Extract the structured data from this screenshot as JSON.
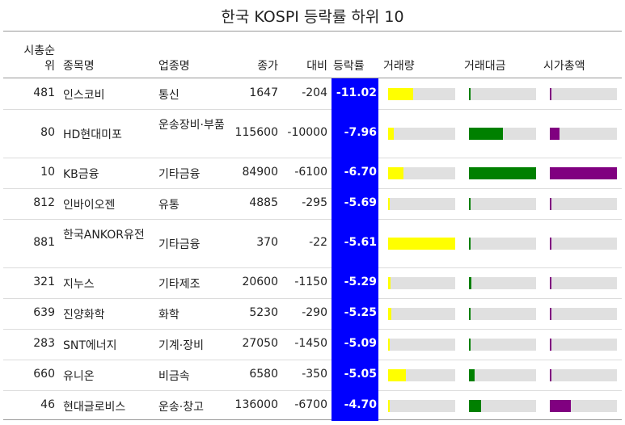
{
  "colors": {
    "pct_bg": "#0000ff",
    "volume": "#ffff00",
    "value": "#008000",
    "mcap": "#800080",
    "track": "#e0e0e0"
  },
  "chart_data": {
    "type": "table",
    "title": "한국 KOSPI 등락률 하위 10",
    "columns": [
      "시총순위",
      "종목명",
      "업종명",
      "종가",
      "대비",
      "등락률",
      "거래량",
      "거래대금",
      "시가총액"
    ],
    "header_rank_lines": [
      "시총순",
      "위"
    ],
    "rows": [
      {
        "rank": "481",
        "name": "인스코비",
        "sector": "통신",
        "close": "1647",
        "change": "-204",
        "pct": "-11.02",
        "volume": 0.37,
        "value": 0.03,
        "mcap": 0.01
      },
      {
        "rank": "80",
        "name": "HD현대미포",
        "sector": "운송장비·부품",
        "close": "115600",
        "change": "-10000",
        "pct": "-7.96",
        "volume": 0.09,
        "value": 0.5,
        "mcap": 0.15
      },
      {
        "rank": "10",
        "name": "KB금융",
        "sector": "기타금융",
        "close": "84900",
        "change": "-6100",
        "pct": "-6.70",
        "volume": 0.23,
        "value": 1.0,
        "mcap": 1.0
      },
      {
        "rank": "812",
        "name": "인바이오젠",
        "sector": "유통",
        "close": "4885",
        "change": "-295",
        "pct": "-5.69",
        "volume": 0.02,
        "value": 0.01,
        "mcap": 0.01
      },
      {
        "rank": "881",
        "name": "한국ANKOR유전",
        "sector": "기타금융",
        "close": "370",
        "change": "-22",
        "pct": "-5.61",
        "volume": 1.0,
        "value": 0.03,
        "mcap": 0.01
      },
      {
        "rank": "321",
        "name": "지누스",
        "sector": "기타제조",
        "close": "20600",
        "change": "-1150",
        "pct": "-5.29",
        "volume": 0.04,
        "value": 0.04,
        "mcap": 0.01
      },
      {
        "rank": "639",
        "name": "진양화학",
        "sector": "화학",
        "close": "5230",
        "change": "-290",
        "pct": "-5.25",
        "volume": 0.05,
        "value": 0.02,
        "mcap": 0.01
      },
      {
        "rank": "283",
        "name": "SNT에너지",
        "sector": "기계·장비",
        "close": "27050",
        "change": "-1450",
        "pct": "-5.09",
        "volume": 0.03,
        "value": 0.03,
        "mcap": 0.01
      },
      {
        "rank": "660",
        "name": "유니온",
        "sector": "비금속",
        "close": "6580",
        "change": "-350",
        "pct": "-5.05",
        "volume": 0.27,
        "value": 0.09,
        "mcap": 0.01
      },
      {
        "rank": "46",
        "name": "현대글로비스",
        "sector": "운송·창고",
        "close": "136000",
        "change": "-6700",
        "pct": "-4.70",
        "volume": 0.03,
        "value": 0.18,
        "mcap": 0.31
      }
    ]
  }
}
